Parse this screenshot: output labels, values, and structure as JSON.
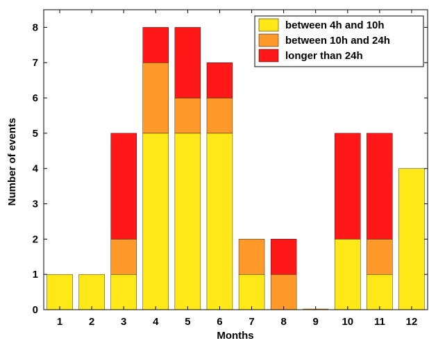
{
  "chart_data": {
    "type": "bar",
    "stacked": true,
    "categories": [
      "1",
      "2",
      "3",
      "4",
      "5",
      "6",
      "7",
      "8",
      "9",
      "10",
      "11",
      "12"
    ],
    "series": [
      {
        "name": "between 4h and 10h",
        "color": "#ffe818",
        "values": [
          1,
          1,
          1,
          5,
          5,
          5,
          1,
          0,
          0,
          2,
          1,
          4
        ]
      },
      {
        "name": "between 10h and 24h",
        "color": "#ff9a2a",
        "values": [
          0,
          0,
          1,
          2,
          1,
          1,
          1,
          1,
          0,
          0,
          1,
          0
        ]
      },
      {
        "name": "longer than 24h",
        "color": "#ff1818",
        "values": [
          0,
          0,
          3,
          1,
          2,
          1,
          0,
          1,
          0,
          3,
          3,
          0
        ]
      }
    ],
    "title": "",
    "xlabel": "Months",
    "ylabel": "Number of events",
    "ylim": [
      0,
      8.5
    ],
    "yticks": [
      0,
      1,
      2,
      3,
      4,
      5,
      6,
      7,
      8
    ],
    "grid": false,
    "legend_position": "top-right"
  }
}
